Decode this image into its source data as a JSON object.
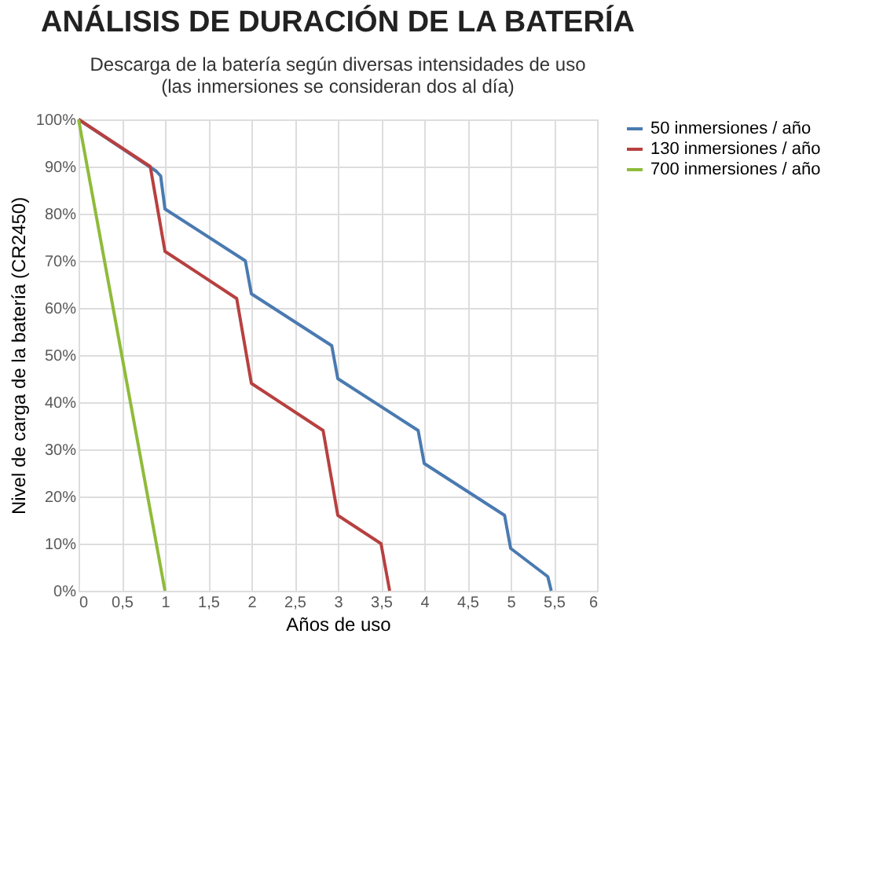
{
  "chart_data": {
    "type": "line",
    "title": "ANÁLISIS DE DURACIÓN DE LA BATERÍA",
    "subtitle": "Descarga de la batería según diversas intensidades de uso\n(las inmersiones se consideran dos al día)",
    "xlabel": "Años de uso",
    "ylabel": "Nivel de carga de la batería (CR2450)",
    "series": [
      {
        "name": "50 inmersiones / año",
        "color": "#4a7ab0",
        "x": [
          0,
          0.9,
          0.95,
          1,
          1.93,
          2,
          2.93,
          3,
          3.93,
          4,
          4.93,
          5,
          5.43,
          5.47
        ],
        "values": [
          100,
          89,
          88,
          81,
          70,
          63,
          52,
          45,
          34,
          27,
          16,
          9,
          3,
          0
        ]
      },
      {
        "name": "130 inmersiones / año",
        "color": "#b84040",
        "x": [
          0,
          0.83,
          1,
          1.83,
          2,
          2.83,
          3,
          3.5,
          3.6
        ],
        "values": [
          100,
          90,
          72,
          62,
          44,
          34,
          16,
          10,
          0
        ]
      },
      {
        "name": "700 inmersiones / año",
        "color": "#8fbb3a",
        "x": [
          0,
          1
        ],
        "values": [
          100,
          0
        ]
      }
    ],
    "xlim": [
      0,
      6
    ],
    "xticks": [
      0,
      {
        "value": 0.5,
        "label": "0,5"
      },
      1,
      {
        "value": 1.5,
        "label": "1,5"
      },
      2,
      {
        "value": 2.5,
        "label": "2,5"
      },
      3,
      {
        "value": 3.5,
        "label": "3,5"
      },
      4,
      {
        "value": 4.5,
        "label": "4,5"
      },
      5,
      {
        "value": 5.5,
        "label": "5,5"
      },
      6
    ],
    "ylim": [
      0,
      100
    ],
    "yticks": [
      {
        "value": 0,
        "label": "0%"
      },
      {
        "value": 10,
        "label": "10%"
      },
      {
        "value": 20,
        "label": "20%"
      },
      {
        "value": 30,
        "label": "30%"
      },
      {
        "value": 40,
        "label": "40%"
      },
      {
        "value": 50,
        "label": "50%"
      },
      {
        "value": 60,
        "label": "60%"
      },
      {
        "value": 70,
        "label": "70%"
      },
      {
        "value": 80,
        "label": "80%"
      },
      {
        "value": 90,
        "label": "90%"
      },
      {
        "value": 100,
        "label": "100%"
      }
    ],
    "grid": true,
    "legend": "right",
    "marker": "none",
    "line_style": "solid"
  }
}
